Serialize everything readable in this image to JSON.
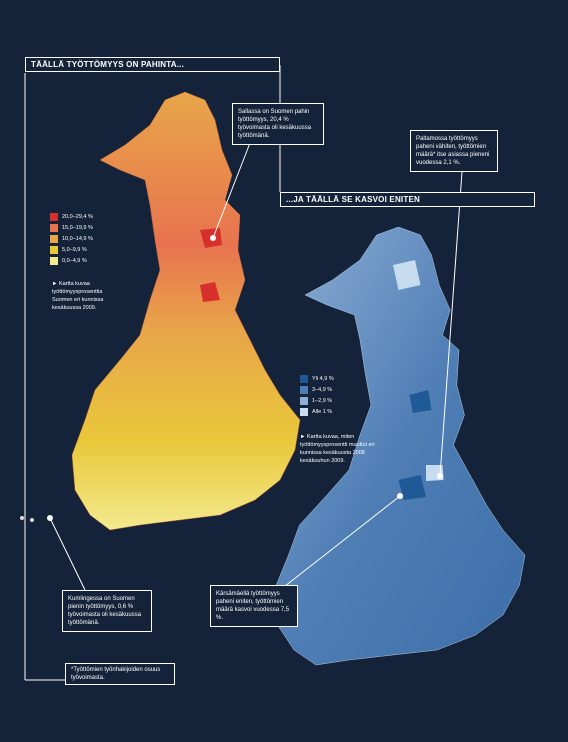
{
  "map1": {
    "title": "TÄÄLLÄ TYÖTTÖMYYS ON PAHINTA...",
    "legend": [
      "20,0–29,4 %",
      "15,0–19,9 %",
      "10,0–14,9 %",
      "5,0–9,9 %",
      "0,0–4,9 %"
    ],
    "note": "► Kartta kuvaa työttömyysprosenttia Suomen eri kunnissa kesäkuussa 2009.",
    "annotations": [
      "Sallassa on Suomen pahin työttömyys, 20,4 % työvoimasta oli kesäkuussa työttömänä.",
      "Kumlingessa on Suomen pienin työttömyys, 0,6 % työvoimasta oli kesäkuussa työttömänä."
    ]
  },
  "map2": {
    "title": "...JA TÄÄLLÄ SE KASVOI ENITEN",
    "legend": [
      "Yli 4,9 %",
      "3–4,9 %",
      "1–2,9 %",
      "Alle 1 %"
    ],
    "note": "► Kartta kuvaa, miten työttömyysprosentti muuttui eri kunnissa kesäkuusta 2008 kesäkuuhun 2009.",
    "annotations": [
      "Paltamossa työttömyys paheni vähiten, työttömien määrä* itse asiassa pieneni vuodessa 2,1 %.",
      "Kärsämäellä työttömyys paheni eniten, työttömien määrä kasvoi vuodessa 7,5 %."
    ]
  },
  "footnote": "*Työttömien työnhakijoiden osuus työvoimasta."
}
